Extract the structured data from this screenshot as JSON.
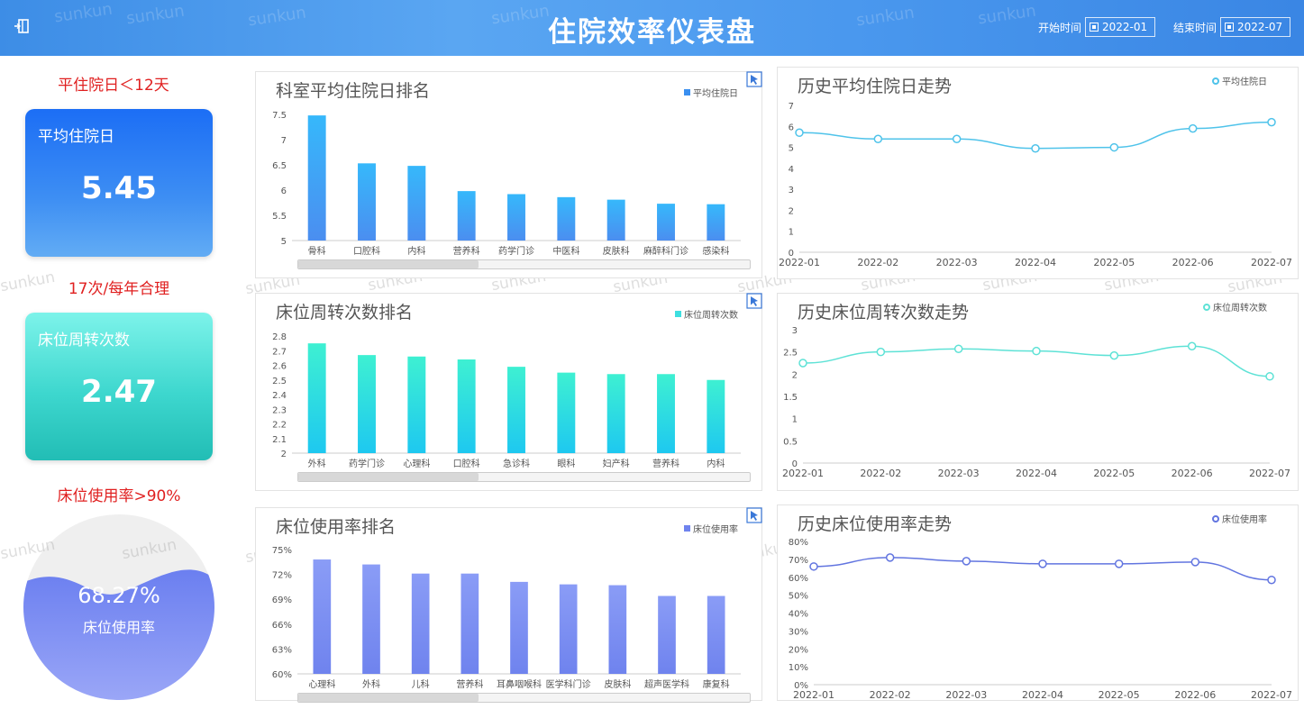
{
  "header": {
    "title": "住院效率仪表盘",
    "start_label": "开始时间",
    "start_value": "2022-01",
    "end_label": "结束时间",
    "end_value": "2022-07",
    "menu_icon": "sidebar-toggle-icon",
    "watermark": "sunkun"
  },
  "kpis": {
    "stay_note": "平住院日＜12天",
    "stay_label": "平均住院日",
    "stay_value": "5.45",
    "turnover_note": "17次/每年合理",
    "turnover_label": "床位周转次数",
    "turnover_value": "2.47",
    "usage_note": "床位使用率>90%",
    "usage_value": "68.27%",
    "usage_label": "床位使用率",
    "usage_fraction": 0.6827
  },
  "colors": {
    "blue_bar_top": "#36b8fb",
    "blue_bar_bottom": "#4b8ef0",
    "teal_bar_top": "#3ef0d2",
    "teal_bar_bottom": "#1ec8f0",
    "purple_bar_top": "#8a9cf6",
    "purple_bar_bottom": "#6f83ee",
    "line_blue": "#4fc3ea",
    "line_teal": "#5ee2d6",
    "line_purple": "#6275e0"
  },
  "chart_data": [
    {
      "id": "stay_rank",
      "type": "bar",
      "title": "科室平均住院日排名",
      "series": [
        {
          "name": "平均住院日",
          "values": [
            7.48,
            6.53,
            6.48,
            5.98,
            5.92,
            5.86,
            5.81,
            5.73,
            5.72
          ]
        }
      ],
      "categories": [
        "骨科",
        "口腔科",
        "内科",
        "营养科",
        "药学门诊",
        "中医科",
        "皮肤科",
        "麻醉科门诊",
        "感染科"
      ],
      "y_ticks": [
        "5",
        "5.5",
        "6",
        "6.5",
        "7",
        "7.5"
      ],
      "ylim": [
        5,
        7.5
      ]
    },
    {
      "id": "turnover_rank",
      "type": "bar",
      "title": "床位周转次数排名",
      "series": [
        {
          "name": "床位周转次数",
          "values": [
            2.75,
            2.67,
            2.66,
            2.64,
            2.59,
            2.55,
            2.54,
            2.54,
            2.5
          ]
        }
      ],
      "categories": [
        "外科",
        "药学门诊",
        "心理科",
        "口腔科",
        "急诊科",
        "眼科",
        "妇产科",
        "营养科",
        "内科"
      ],
      "y_ticks": [
        "2",
        "2.1",
        "2.2",
        "2.3",
        "2.4",
        "2.5",
        "2.6",
        "2.7",
        "2.8"
      ],
      "ylim": [
        2,
        2.8
      ]
    },
    {
      "id": "usage_rank",
      "type": "bar",
      "title": "床位使用率排名",
      "series": [
        {
          "name": "床位使用率",
          "values": [
            73.8,
            73.2,
            72.1,
            72.1,
            71.1,
            70.8,
            70.7,
            69.4,
            69.4
          ]
        }
      ],
      "categories": [
        "心理科",
        "外科",
        "儿科",
        "营养科",
        "耳鼻咽喉科",
        "医学科门诊",
        "皮肤科",
        "超声医学科",
        "康复科"
      ],
      "y_ticks": [
        "60%",
        "63%",
        "66%",
        "69%",
        "72%",
        "75%"
      ],
      "ylim": [
        60,
        75
      ]
    },
    {
      "id": "stay_trend",
      "type": "line",
      "title": "历史平均住院日走势",
      "series": [
        {
          "name": "平均住院日",
          "values": [
            5.7,
            5.4,
            5.4,
            4.95,
            5.0,
            5.9,
            6.2
          ]
        }
      ],
      "categories": [
        "2022-01",
        "2022-02",
        "2022-03",
        "2022-04",
        "2022-05",
        "2022-06",
        "2022-07"
      ],
      "y_ticks": [
        "0",
        "1",
        "2",
        "3",
        "4",
        "5",
        "6",
        "7"
      ],
      "ylim": [
        0,
        7
      ]
    },
    {
      "id": "turnover_trend",
      "type": "line",
      "title": "历史床位周转次数走势",
      "series": [
        {
          "name": "床位周转次数",
          "values": [
            2.25,
            2.5,
            2.57,
            2.52,
            2.42,
            2.63,
            1.95
          ]
        }
      ],
      "categories": [
        "2022-01",
        "2022-02",
        "2022-03",
        "2022-04",
        "2022-05",
        "2022-06",
        "2022-07"
      ],
      "y_ticks": [
        "0",
        "0.5",
        "1",
        "1.5",
        "2",
        "2.5",
        "3"
      ],
      "ylim": [
        0,
        3
      ]
    },
    {
      "id": "usage_trend",
      "type": "line",
      "title": "历史床位使用率走势",
      "series": [
        {
          "name": "床位使用率",
          "values": [
            66,
            71,
            69,
            67.5,
            67.5,
            68.5,
            58.5
          ]
        }
      ],
      "categories": [
        "2022-01",
        "2022-02",
        "2022-03",
        "2022-04",
        "2022-05",
        "2022-06",
        "2022-07"
      ],
      "y_ticks": [
        "0%",
        "10%",
        "20%",
        "30%",
        "40%",
        "50%",
        "60%",
        "70%",
        "80%"
      ],
      "ylim": [
        0,
        80
      ]
    }
  ]
}
